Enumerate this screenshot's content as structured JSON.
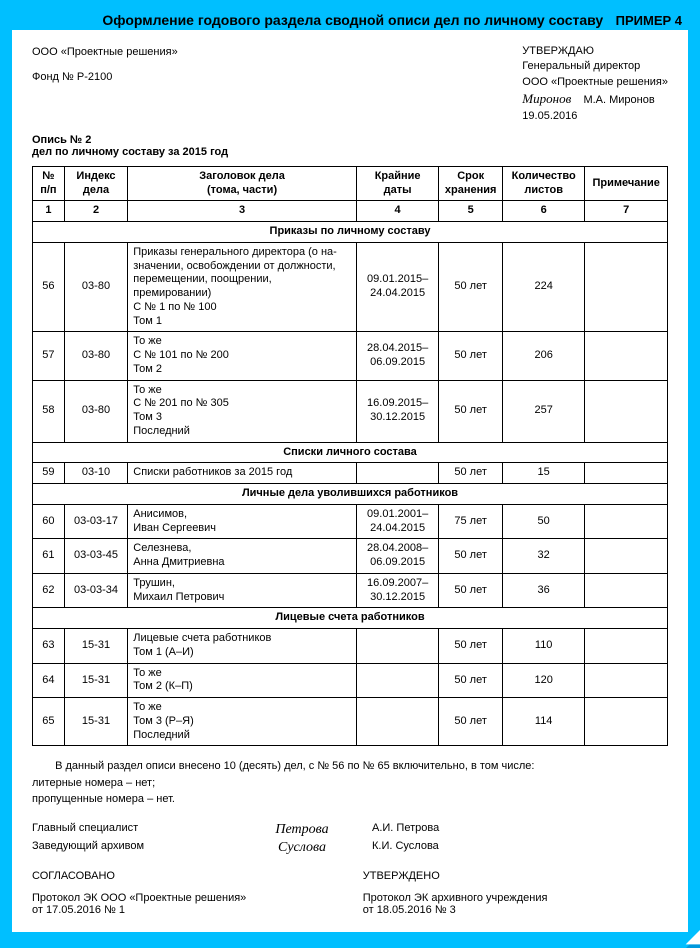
{
  "header": {
    "example_tag": "ПРИМЕР 4",
    "page_title": "Оформление годового раздела сводной описи дел по личному составу"
  },
  "org": {
    "name": "ООО «Проектные решения»",
    "fund": "Фонд № Р-2100",
    "opis_title": "Опись № 2",
    "opis_sub": "дел по личному составу за 2015 год"
  },
  "approve": {
    "line1": "УТВЕРЖДАЮ",
    "line2": "Генеральный директор",
    "line3": "ООО «Проектные решения»",
    "sig": "Миронов",
    "name": "М.А. Миронов",
    "date": "19.05.2016"
  },
  "table": {
    "columns": [
      "№ п/п",
      "Индекс дела",
      "Заголовок дела (тома, части)",
      "Крайние даты",
      "Срок хранения",
      "Количество листов",
      "Примечание"
    ],
    "col_nums": [
      "1",
      "2",
      "3",
      "4",
      "5",
      "6",
      "7"
    ],
    "section1": "Приказы по личному составу",
    "rows1": [
      {
        "n": "56",
        "idx": "03-80",
        "hd": "Приказы генерального директора (о на-значении, освобождении от должности, перемещении, поощрении, премировании)\nС № 1 по № 100\nТом 1",
        "dt": "09.01.2015–\n24.04.2015",
        "sr": "50 лет",
        "kl": "224",
        "pr": ""
      },
      {
        "n": "57",
        "idx": "03-80",
        "hd": "То же\nС № 101 по № 200\nТом 2",
        "dt": "28.04.2015–\n06.09.2015",
        "sr": "50 лет",
        "kl": "206",
        "pr": ""
      },
      {
        "n": "58",
        "idx": "03-80",
        "hd": "То же\nС № 201 по № 305\nТом 3\nПоследний",
        "dt": "16.09.2015–\n30.12.2015",
        "sr": "50 лет",
        "kl": "257",
        "pr": ""
      }
    ],
    "section2": "Списки личного состава",
    "rows2": [
      {
        "n": "59",
        "idx": "03-10",
        "hd": "Списки работников за 2015 год",
        "dt": "",
        "sr": "50 лет",
        "kl": "15",
        "pr": ""
      }
    ],
    "section3": "Личные дела уволившихся работников",
    "rows3": [
      {
        "n": "60",
        "idx": "03-03-17",
        "hd": "Анисимов,\nИван Сергеевич",
        "dt": "09.01.2001–\n24.04.2015",
        "sr": "75 лет",
        "kl": "50",
        "pr": ""
      },
      {
        "n": "61",
        "idx": "03-03-45",
        "hd": "Селезнева,\nАнна Дмитриевна",
        "dt": "28.04.2008–\n06.09.2015",
        "sr": "50 лет",
        "kl": "32",
        "pr": ""
      },
      {
        "n": "62",
        "idx": "03-03-34",
        "hd": "Трушин,\nМихаил Петрович",
        "dt": "16.09.2007–\n30.12.2015",
        "sr": "50 лет",
        "kl": "36",
        "pr": ""
      }
    ],
    "section4": "Лицевые счета работников",
    "rows4": [
      {
        "n": "63",
        "idx": "15-31",
        "hd": "Лицевые счета работников\nТом 1 (А–И)",
        "dt": "",
        "sr": "50 лет",
        "kl": "110",
        "pr": ""
      },
      {
        "n": "64",
        "idx": "15-31",
        "hd": "То же\nТом 2 (К–П)",
        "dt": "",
        "sr": "50 лет",
        "kl": "120",
        "pr": ""
      },
      {
        "n": "65",
        "idx": "15-31",
        "hd": "То же\nТом 3 (Р–Я)\nПоследний",
        "dt": "",
        "sr": "50 лет",
        "kl": "114",
        "pr": ""
      }
    ]
  },
  "foot": {
    "summary": "В данный раздел описи внесено 10 (десять) дел, с № 56 по № 65 включительно, в том числе:",
    "lit": "литерные номера – нет;",
    "miss": "пропущенные номера – нет.",
    "signs": [
      {
        "pos": "Главный специалист",
        "sig": "Петрова",
        "name": "А.И. Петрова"
      },
      {
        "pos": "Заведующий архивом",
        "sig": "Суслова",
        "name": "К.И. Суслова"
      }
    ],
    "agree_left_title": "СОГЛАСОВАНО",
    "agree_left_l1": "Протокол ЭК ООО «Проектные решения»",
    "agree_left_l2": "от 17.05.2016 № 1",
    "agree_right_title": "УТВЕРЖДЕНО",
    "agree_right_l1": "Протокол ЭК архивного учреждения",
    "agree_right_l2": "от 18.05.2016 № 3"
  },
  "style": {
    "bg_color": "#00bfff",
    "doc_bg": "#ffffff",
    "border_color": "#000000",
    "font": "Arial",
    "title_fontsize": 14,
    "body_fontsize": 11
  }
}
